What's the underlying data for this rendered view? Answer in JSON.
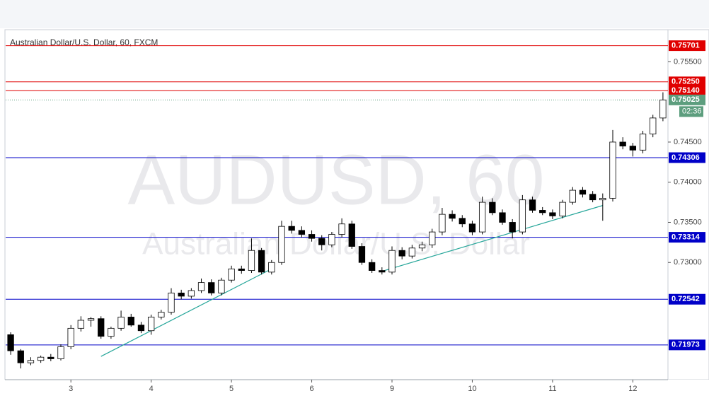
{
  "chart_data": {
    "type": "candlestick",
    "title": "Australian Dollar/U.S. Dollar, 60, FXCM",
    "watermark": "AUDUSD, 60",
    "watermark_subtitle": "Australian Dollar/U.S. Dollar",
    "categories": [
      null,
      null,
      null,
      null,
      null,
      null,
      "3",
      null,
      null,
      null,
      null,
      null,
      null,
      null,
      "4",
      null,
      null,
      null,
      null,
      null,
      null,
      null,
      "5",
      null,
      null,
      null,
      null,
      null,
      null,
      null,
      "6",
      null,
      null,
      null,
      null,
      null,
      null,
      null,
      "9",
      null,
      null,
      null,
      null,
      null,
      null,
      null,
      "10",
      null,
      null,
      null,
      null,
      null,
      null,
      null,
      "11",
      null,
      null,
      null,
      null,
      null,
      null,
      null,
      "12",
      null,
      null,
      null
    ],
    "open": [
      0.721,
      0.719,
      0.7175,
      0.7178,
      0.7182,
      0.718,
      0.7195,
      0.7218,
      0.7228,
      0.723,
      0.7208,
      0.7218,
      0.7232,
      0.7222,
      0.7215,
      0.7232,
      0.7238,
      0.7262,
      0.7258,
      0.7265,
      0.7275,
      0.7262,
      0.7278,
      0.7292,
      0.729,
      0.7315,
      0.7288,
      0.73,
      0.7345,
      0.734,
      0.7335,
      0.733,
      0.7322,
      0.7335,
      0.7348,
      0.732,
      0.73,
      0.729,
      0.7288,
      0.7315,
      0.7308,
      0.7318,
      0.7322,
      0.7338,
      0.736,
      0.7355,
      0.7348,
      0.7338,
      0.7375,
      0.7362,
      0.735,
      0.7338,
      0.7378,
      0.7365,
      0.7362,
      0.7358,
      0.7375,
      0.739,
      0.7385,
      0.7378,
      0.738,
      0.745,
      0.7445,
      0.744,
      0.746,
      0.748
    ],
    "high": [
      0.7213,
      0.7192,
      0.7182,
      0.7184,
      0.7186,
      0.7198,
      0.7222,
      0.7233,
      0.7232,
      0.7233,
      0.722,
      0.724,
      0.7236,
      0.7226,
      0.7235,
      0.7241,
      0.7268,
      0.7266,
      0.7268,
      0.728,
      0.7279,
      0.7281,
      0.7296,
      0.7296,
      0.733,
      0.7318,
      0.7303,
      0.7352,
      0.7352,
      0.7345,
      0.734,
      0.7334,
      0.7338,
      0.7355,
      0.7352,
      0.7324,
      0.7304,
      0.7294,
      0.732,
      0.7319,
      0.7322,
      0.7326,
      0.7342,
      0.7368,
      0.7365,
      0.7359,
      0.7352,
      0.7382,
      0.738,
      0.7366,
      0.7354,
      0.7384,
      0.7382,
      0.7369,
      0.7366,
      0.7378,
      0.7394,
      0.7394,
      0.7389,
      0.7386,
      0.7465,
      0.7456,
      0.7449,
      0.7464,
      0.7484,
      0.7512
    ],
    "low": [
      0.7185,
      0.7168,
      0.7172,
      0.7175,
      0.7177,
      0.7178,
      0.7192,
      0.7214,
      0.722,
      0.7205,
      0.7205,
      0.7215,
      0.722,
      0.7212,
      0.721,
      0.7229,
      0.7235,
      0.7254,
      0.7255,
      0.7262,
      0.7259,
      0.7259,
      0.7275,
      0.7286,
      0.7287,
      0.7285,
      0.7285,
      0.7297,
      0.7336,
      0.7331,
      0.7326,
      0.7315,
      0.7319,
      0.7331,
      0.7317,
      0.7297,
      0.7287,
      0.7285,
      0.7285,
      0.7304,
      0.7305,
      0.7314,
      0.7318,
      0.7334,
      0.7351,
      0.7344,
      0.7334,
      0.7335,
      0.7359,
      0.7347,
      0.733,
      0.7335,
      0.7362,
      0.7359,
      0.7354,
      0.7355,
      0.7372,
      0.7381,
      0.7375,
      0.7352,
      0.7376,
      0.7441,
      0.7432,
      0.7436,
      0.7456,
      0.7476
    ],
    "close": [
      0.719,
      0.7175,
      0.7178,
      0.7182,
      0.718,
      0.7195,
      0.7218,
      0.7228,
      0.723,
      0.7208,
      0.7218,
      0.7232,
      0.7222,
      0.7215,
      0.7232,
      0.7238,
      0.7262,
      0.7258,
      0.7265,
      0.7275,
      0.7262,
      0.7278,
      0.7292,
      0.729,
      0.7315,
      0.7288,
      0.73,
      0.7345,
      0.734,
      0.7335,
      0.733,
      0.7322,
      0.7335,
      0.7348,
      0.732,
      0.73,
      0.729,
      0.7288,
      0.7315,
      0.7308,
      0.7318,
      0.7322,
      0.7338,
      0.736,
      0.7355,
      0.7348,
      0.7338,
      0.7375,
      0.7362,
      0.735,
      0.7338,
      0.7378,
      0.7365,
      0.7362,
      0.7358,
      0.7375,
      0.739,
      0.7385,
      0.7378,
      0.738,
      0.745,
      0.7445,
      0.744,
      0.746,
      0.748,
      0.75025
    ],
    "up_color": "#ffffff",
    "down_color": "#000000",
    "ylim": [
      0.7154,
      0.759
    ],
    "yticks": [
      {
        "value": 0.73,
        "label": "0.73000"
      },
      {
        "value": 0.735,
        "label": "0.73500"
      },
      {
        "value": 0.74,
        "label": "0.74000"
      },
      {
        "value": 0.745,
        "label": "0.74500"
      },
      {
        "value": 0.755,
        "label": "0.75500"
      }
    ],
    "levels": [
      {
        "value": 0.75701,
        "label": "0.75701",
        "color": "#e00000"
      },
      {
        "value": 0.7525,
        "label": "0.75250",
        "color": "#e00000"
      },
      {
        "value": 0.7514,
        "label": "0.75140",
        "color": "#e00000"
      },
      {
        "value": 0.74306,
        "label": "0.74306",
        "color": "#0000c8"
      },
      {
        "value": 0.73314,
        "label": "0.73314",
        "color": "#0000c8"
      },
      {
        "value": 0.72542,
        "label": "0.72542",
        "color": "#0000c8"
      },
      {
        "value": 0.71973,
        "label": "0.71973",
        "color": "#0000c8"
      }
    ],
    "last_price": {
      "value": 0.75025,
      "label": "0.75025",
      "color": "#5d9e7e",
      "countdown": "02:36"
    },
    "trendlines": [
      {
        "from": 9,
        "from_value": 0.7183,
        "to": 26,
        "to_value": 0.7292,
        "color": "#26a69a"
      },
      {
        "from": 37,
        "from_value": 0.7289,
        "to": 59,
        "to_value": 0.7371,
        "color": "#26a69a"
      }
    ]
  }
}
